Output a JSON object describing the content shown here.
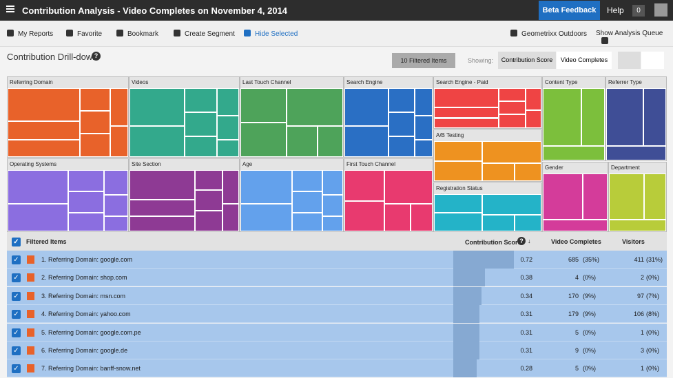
{
  "header": {
    "title": "Contribution Analysis - Video Completes on November 4, 2014",
    "beta": "Beta Feedback",
    "help": "Help",
    "count": "0"
  },
  "toolbar": {
    "items": [
      "My Reports",
      "Favorite",
      "Bookmark",
      "Create Segment",
      "Hide Selected"
    ],
    "suite": "Geometrixx Outdoors",
    "queue": "Show Analysis Queue"
  },
  "section": {
    "title": "Contribution Drill-down",
    "help": "?",
    "filtered": "10 Filtered Items",
    "showing": "Showing:",
    "tabs": [
      "Contribution Score",
      "Video Completes"
    ]
  },
  "treemap": {
    "panels": [
      "Referring Domain",
      "Videos",
      "Last Touch Channel",
      "Search Engine",
      "Search Engine - Paid",
      "Content Type",
      "Referrer Type",
      "A/B Testing",
      "Operating Systems",
      "Site Section",
      "Age",
      "First Touch Channel",
      "Gender",
      "Department",
      "Registration Status"
    ]
  },
  "table": {
    "columns": [
      "Filtered Items",
      "Contribution Score",
      "Video Completes",
      "Visitors"
    ],
    "score_help": "?",
    "sort": "↓",
    "rows": [
      {
        "label": "1. Referring Domain: google.com",
        "score": 0.72,
        "completes": "685",
        "completes_pct": "(35%)",
        "visitors": "411",
        "visitors_pct": "(31%)"
      },
      {
        "label": "2. Referring Domain: shop.com",
        "score": 0.38,
        "completes": "4",
        "completes_pct": "(0%)",
        "visitors": "2",
        "visitors_pct": "(0%)"
      },
      {
        "label": "3. Referring Domain: msn.com",
        "score": 0.34,
        "completes": "170",
        "completes_pct": "(9%)",
        "visitors": "97",
        "visitors_pct": "(7%)"
      },
      {
        "label": "4. Referring Domain: yahoo.com",
        "score": 0.31,
        "completes": "179",
        "completes_pct": "(9%)",
        "visitors": "106",
        "visitors_pct": "(8%)"
      },
      {
        "label": "5. Referring Domain: google.com.pe",
        "score": 0.31,
        "completes": "5",
        "completes_pct": "(0%)",
        "visitors": "1",
        "visitors_pct": "(0%)"
      },
      {
        "label": "6. Referring Domain: google.de",
        "score": 0.31,
        "completes": "9",
        "completes_pct": "(0%)",
        "visitors": "3",
        "visitors_pct": "(0%)"
      },
      {
        "label": "7. Referring Domain: banff-snow.net",
        "score": 0.28,
        "completes": "5",
        "completes_pct": "(0%)",
        "visitors": "1",
        "visitors_pct": "(0%)"
      }
    ]
  }
}
